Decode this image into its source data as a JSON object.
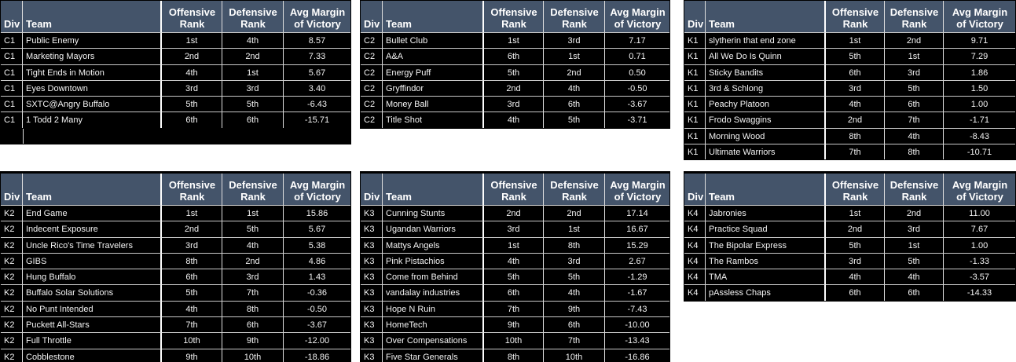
{
  "columns": [
    "Div",
    "Team",
    "Offensive Rank",
    "Defensive Rank",
    "Avg Margin of Victory"
  ],
  "colors": {
    "header_bg": "#44546a",
    "header_text": "#ffffff",
    "row_bg": "#000000",
    "row_text": "#f4f4f4",
    "gridline": "#e0e0e0"
  },
  "chart_data": [
    {
      "type": "table",
      "division": "C1",
      "columns": [
        "Div",
        "Team",
        "Offensive Rank",
        "Defensive Rank",
        "Avg Margin of Victory"
      ],
      "rows": [
        [
          "C1",
          "Public Enemy",
          "1st",
          "4th",
          "8.57"
        ],
        [
          "C1",
          "Marketing Mayors",
          "2nd",
          "2nd",
          "7.33"
        ],
        [
          "C1",
          "Tight Ends in Motion",
          "4th",
          "1st",
          "5.67"
        ],
        [
          "C1",
          "Eyes Downtown",
          "3rd",
          "3rd",
          "3.40"
        ],
        [
          "C1",
          "SXTC@Angry Buffalo",
          "5th",
          "5th",
          "-6.43"
        ],
        [
          "C1",
          "1 Todd 2 Many",
          "6th",
          "6th",
          "-15.71"
        ]
      ]
    },
    {
      "type": "table",
      "division": "C2",
      "columns": [
        "Div",
        "Team",
        "Offensive Rank",
        "Defensive Rank",
        "Avg Margin of Victory"
      ],
      "rows": [
        [
          "C2",
          "Bullet Club",
          "1st",
          "3rd",
          "7.17"
        ],
        [
          "C2",
          "A&A",
          "6th",
          "1st",
          "0.71"
        ],
        [
          "C2",
          "Energy Puff",
          "5th",
          "2nd",
          "0.50"
        ],
        [
          "C2",
          "Gryffindor",
          "2nd",
          "4th",
          "-0.50"
        ],
        [
          "C2",
          "Money Ball",
          "3rd",
          "6th",
          "-3.67"
        ],
        [
          "C2",
          "Title Shot",
          "4th",
          "5th",
          "-3.71"
        ]
      ]
    },
    {
      "type": "table",
      "division": "K1",
      "columns": [
        "Div",
        "Team",
        "Offensive Rank",
        "Defensive Rank",
        "Avg Margin of Victory"
      ],
      "rows": [
        [
          "K1",
          "slytherin that end zone",
          "1st",
          "2nd",
          "9.71"
        ],
        [
          "K1",
          "All We Do Is Quinn",
          "5th",
          "1st",
          "7.29"
        ],
        [
          "K1",
          "Sticky Bandits",
          "6th",
          "3rd",
          "1.86"
        ],
        [
          "K1",
          "3rd & Schlong",
          "3rd",
          "5th",
          "1.50"
        ],
        [
          "K1",
          "Peachy Platoon",
          "4th",
          "6th",
          "1.00"
        ],
        [
          "K1",
          "Frodo Swaggins",
          "2nd",
          "7th",
          "-1.71"
        ],
        [
          "K1",
          "Morning Wood",
          "8th",
          "4th",
          "-8.43"
        ],
        [
          "K1",
          "Ultimate Warriors",
          "7th",
          "8th",
          "-10.71"
        ]
      ]
    },
    {
      "type": "table",
      "division": "K2",
      "columns": [
        "Div",
        "Team",
        "Offensive Rank",
        "Defensive Rank",
        "Avg Margin of Victory"
      ],
      "rows": [
        [
          "K2",
          "End Game",
          "1st",
          "1st",
          "15.86"
        ],
        [
          "K2",
          "Indecent Exposure",
          "2nd",
          "5th",
          "5.67"
        ],
        [
          "K2",
          "Uncle Rico's Time Travelers",
          "3rd",
          "4th",
          "5.38"
        ],
        [
          "K2",
          "GIBS",
          "8th",
          "2nd",
          "4.86"
        ],
        [
          "K2",
          "Hung Buffalo",
          "6th",
          "3rd",
          "1.43"
        ],
        [
          "K2",
          "Buffalo Solar Solutions",
          "5th",
          "7th",
          "-0.36"
        ],
        [
          "K2",
          "No Punt Intended",
          "4th",
          "8th",
          "-0.50"
        ],
        [
          "K2",
          "Puckett All-Stars",
          "7th",
          "6th",
          "-3.67"
        ],
        [
          "K2",
          "Full Throttle",
          "10th",
          "9th",
          "-12.00"
        ],
        [
          "K2",
          "Cobblestone",
          "9th",
          "10th",
          "-18.86"
        ]
      ]
    },
    {
      "type": "table",
      "division": "K3",
      "columns": [
        "Div",
        "Team",
        "Offensive Rank",
        "Defensive Rank",
        "Avg Margin of Victory"
      ],
      "rows": [
        [
          "K3",
          "Cunning Stunts",
          "2nd",
          "2nd",
          "17.14"
        ],
        [
          "K3",
          "Ugandan Warriors",
          "3rd",
          "1st",
          "16.67"
        ],
        [
          "K3",
          "Mattys Angels",
          "1st",
          "8th",
          "15.29"
        ],
        [
          "K3",
          "Pink Pistachios",
          "4th",
          "3rd",
          "2.67"
        ],
        [
          "K3",
          "Come from Behind",
          "5th",
          "5th",
          "-1.29"
        ],
        [
          "K3",
          "vandalay industries",
          "6th",
          "4th",
          "-1.67"
        ],
        [
          "K3",
          "Hope N Ruin",
          "7th",
          "9th",
          "-7.43"
        ],
        [
          "K3",
          "HomeTech",
          "9th",
          "6th",
          "-10.00"
        ],
        [
          "K3",
          "Over Compensations",
          "10th",
          "7th",
          "-13.43"
        ],
        [
          "K3",
          "Five Star Generals",
          "8th",
          "10th",
          "-16.86"
        ]
      ]
    },
    {
      "type": "table",
      "division": "K4",
      "columns": [
        "Div",
        "Team",
        "Offensive Rank",
        "Defensive Rank",
        "Avg Margin of Victory"
      ],
      "rows": [
        [
          "K4",
          "Jabronies",
          "1st",
          "2nd",
          "11.00"
        ],
        [
          "K4",
          "Practice Squad",
          "2nd",
          "3rd",
          "7.67"
        ],
        [
          "K4",
          "The Bipolar Express",
          "5th",
          "1st",
          "1.00"
        ],
        [
          "K4",
          "The Rambos",
          "3rd",
          "5th",
          "-1.33"
        ],
        [
          "K4",
          "TMA",
          "4th",
          "4th",
          "-3.57"
        ],
        [
          "K4",
          "pAssless Chaps",
          "6th",
          "6th",
          "-14.33"
        ]
      ]
    }
  ]
}
